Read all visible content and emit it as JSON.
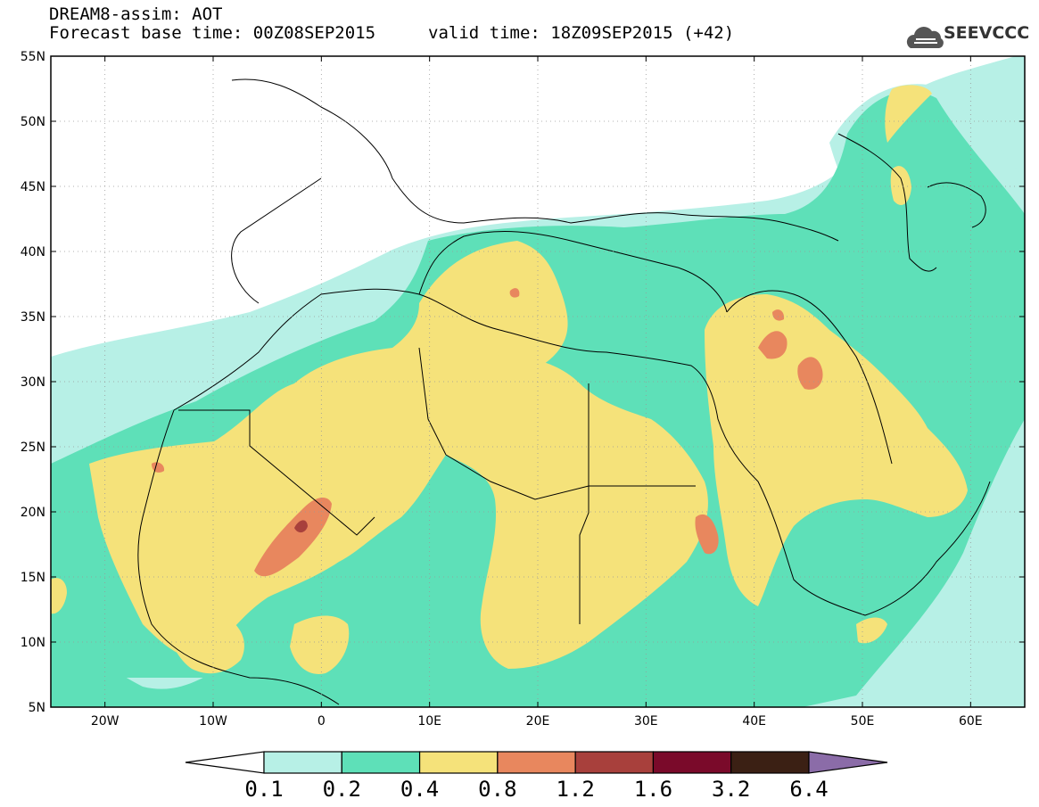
{
  "title": {
    "line1": "DREAM8-assim: AOT",
    "base_time": "Forecast base time: 00Z08SEP2015",
    "valid_time": "valid time: 18Z09SEP2015 (+42)"
  },
  "logo": {
    "text": "SEEVCCC",
    "icon": "cloud-logo-icon"
  },
  "axes": {
    "lat_labels": [
      "5N",
      "10N",
      "15N",
      "20N",
      "25N",
      "30N",
      "35N",
      "40N",
      "45N",
      "50N",
      "55N"
    ],
    "lon_labels": [
      "20W",
      "10W",
      "0",
      "10E",
      "20E",
      "30E",
      "40E",
      "50E",
      "60E"
    ]
  },
  "colorbar": {
    "labels": [
      "0.1",
      "0.2",
      "0.4",
      "0.8",
      "1.2",
      "1.6",
      "3.2",
      "6.4"
    ],
    "colors": [
      "#ffffff",
      "#b7f0e6",
      "#5ee0b8",
      "#f5e27a",
      "#e8875e",
      "#a8403c",
      "#7a0a2a",
      "#3b2014",
      "#8b6ca8"
    ]
  },
  "map_colors": {
    "c01": "#b7f0e6",
    "c02": "#5ee0b8",
    "c04": "#f5e27a",
    "c08": "#e8875e",
    "c12": "#a8403c"
  }
}
